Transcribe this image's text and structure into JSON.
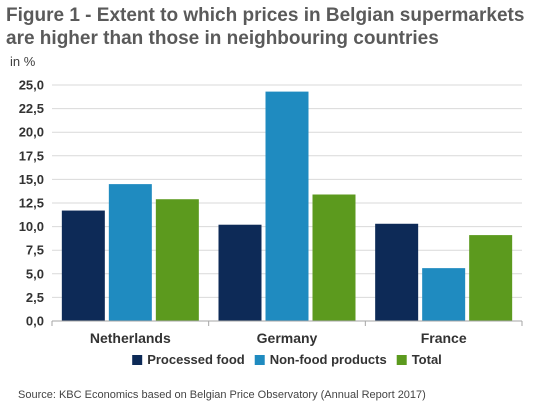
{
  "chart_data": {
    "type": "bar",
    "title": "Figure 1 - Extent to which prices in Belgian supermarkets are higher than those in neighbouring countries",
    "unit": "in %",
    "categories": [
      "Netherlands",
      "Germany",
      "France"
    ],
    "series": [
      {
        "name": "Processed food",
        "color": "#0d2a57",
        "values": [
          11.7,
          10.2,
          10.3
        ]
      },
      {
        "name": "Non-food products",
        "color": "#1f8bc0",
        "values": [
          14.5,
          24.3,
          5.6
        ]
      },
      {
        "name": "Total",
        "color": "#5c9a1e",
        "values": [
          12.9,
          13.4,
          9.1
        ]
      }
    ],
    "ylim": [
      0,
      25
    ],
    "yticks": [
      "0,0",
      "2,5",
      "5,0",
      "7,5",
      "10,0",
      "12,5",
      "15,0",
      "17,5",
      "20,0",
      "22,5",
      "25,0"
    ],
    "grid": true,
    "legend_position": "bottom",
    "source": "Source: KBC Economics based on Belgian Price Observatory (Annual Report 2017)"
  }
}
